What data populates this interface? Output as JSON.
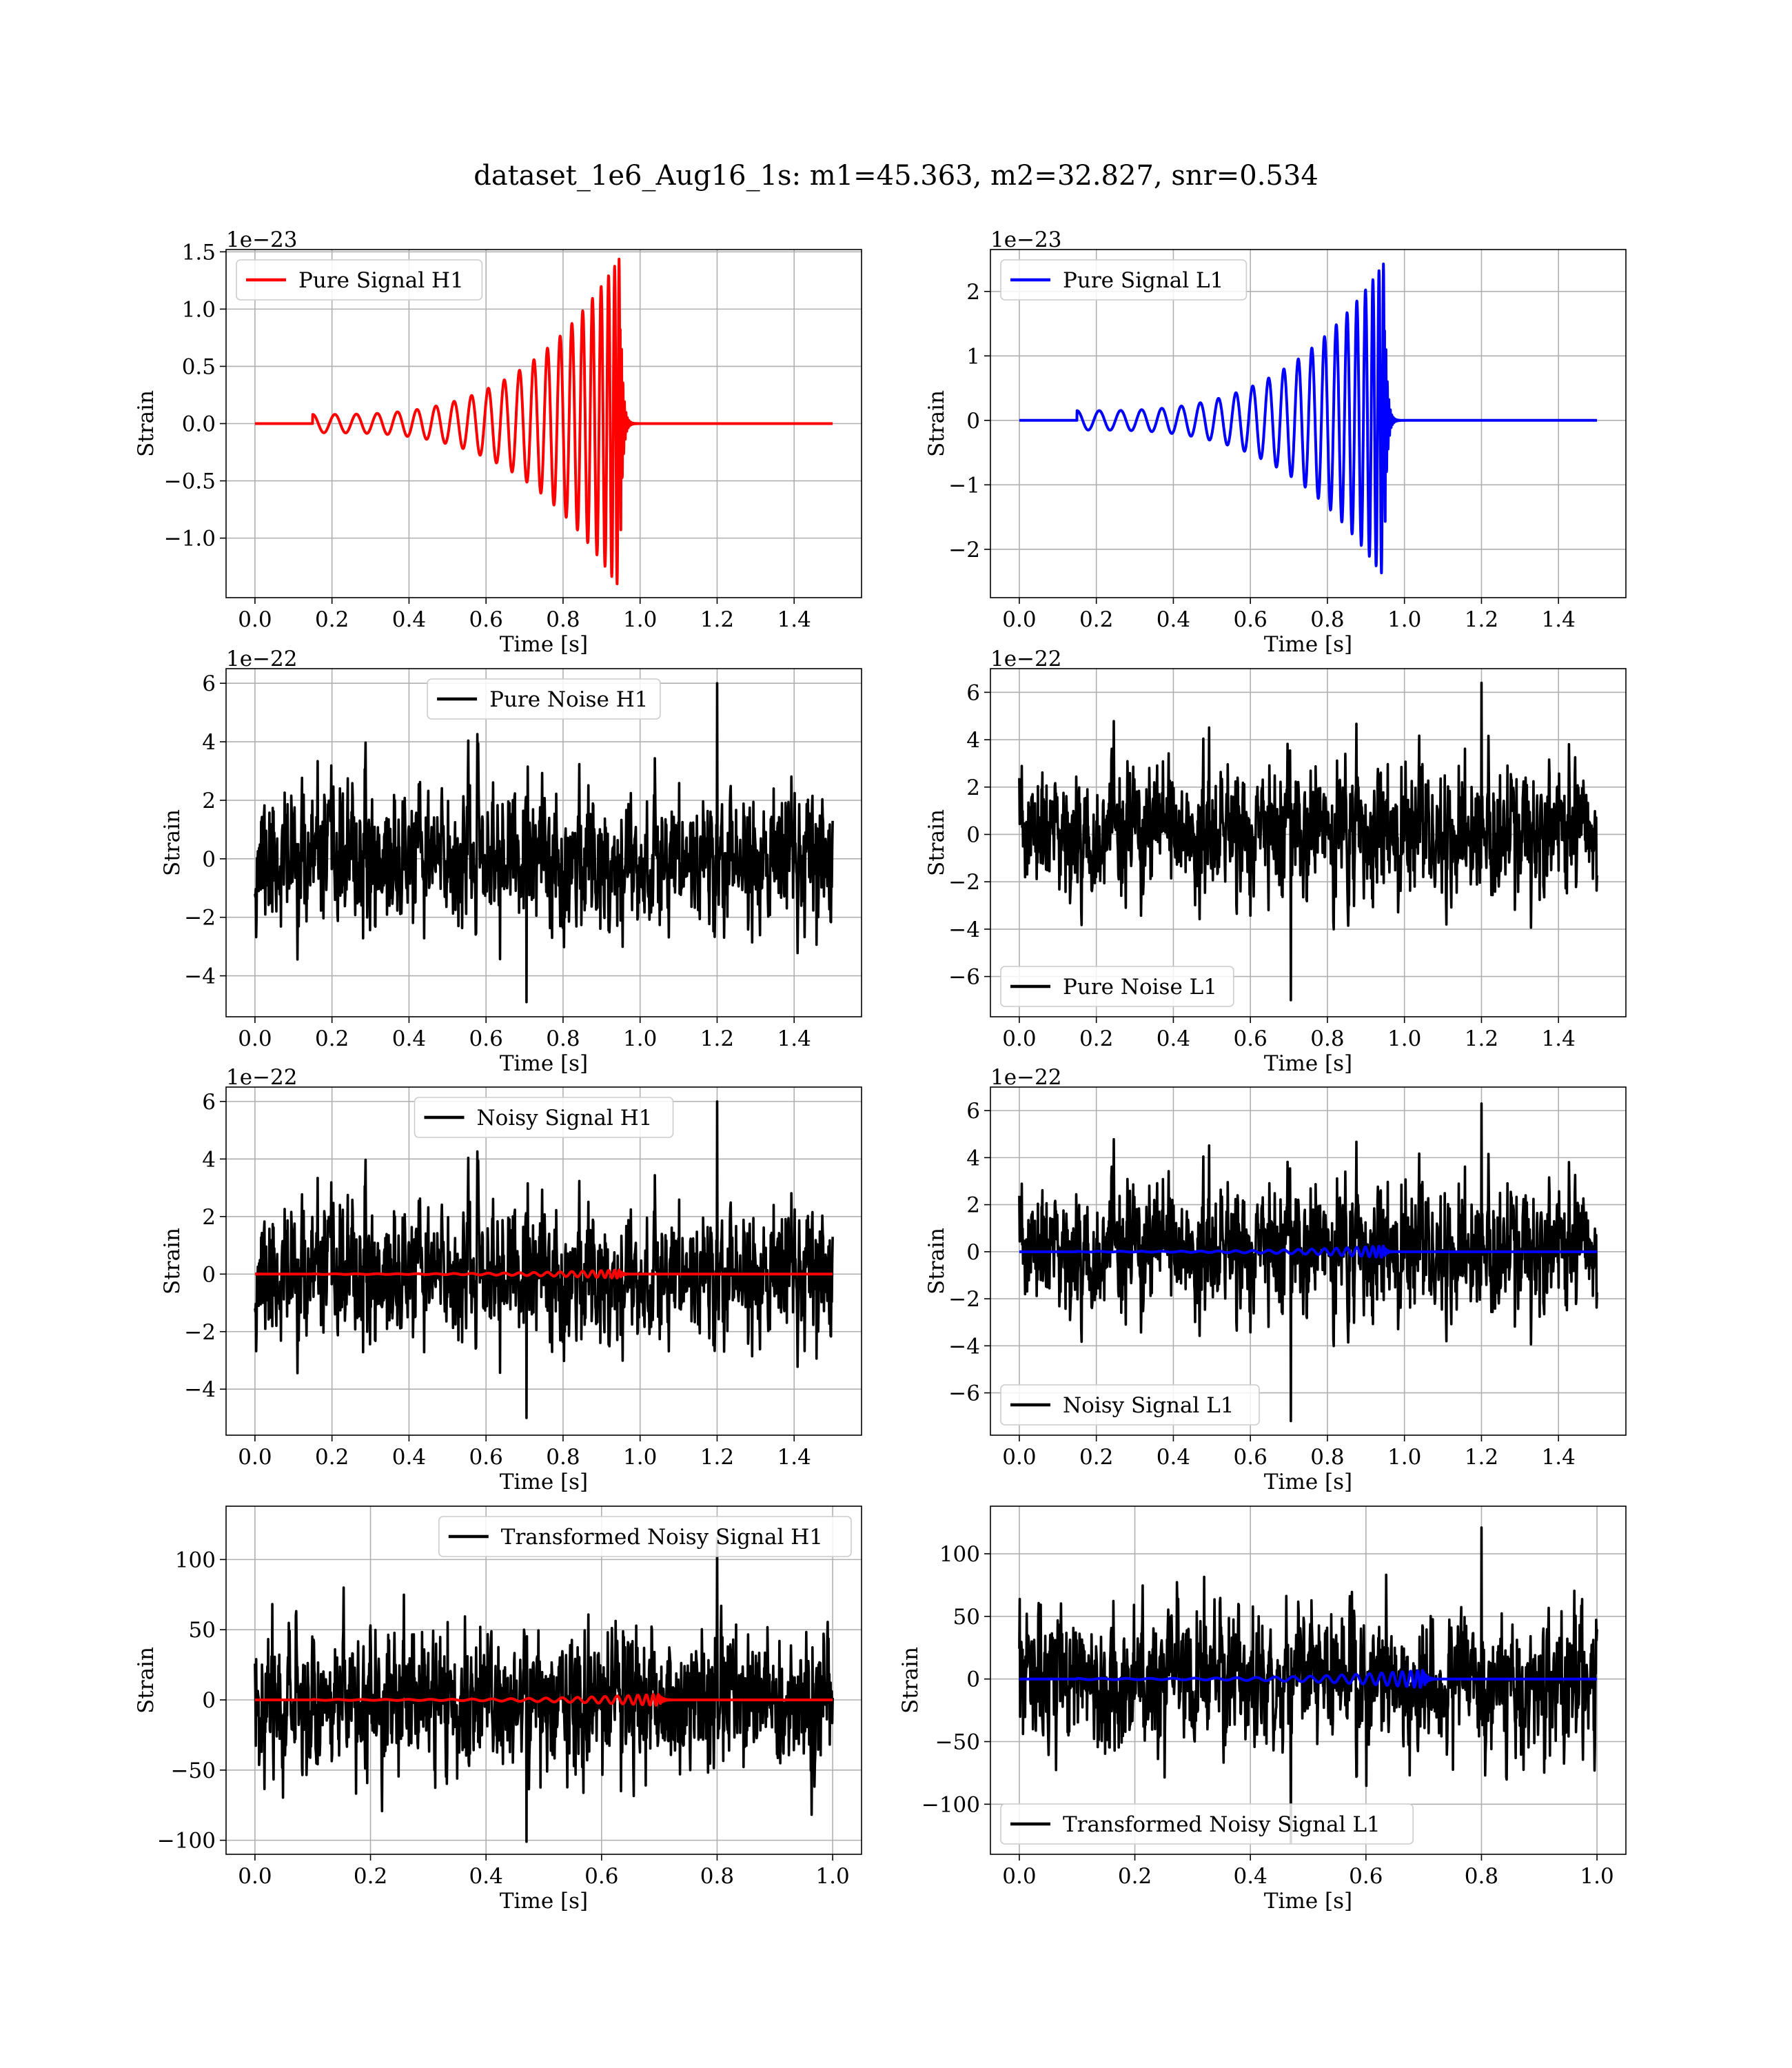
{
  "figure": {
    "title": "dataset_1e6_Aug16_1s: m1=45.363, m2=32.827, snr=0.534"
  },
  "chart_data": [
    {
      "id": "pure-signal-h1",
      "type": "line",
      "xlabel": "Time [s]",
      "ylabel": "Strain",
      "offset_label": "1e−23",
      "xlim": [
        -0.075,
        1.575
      ],
      "ylim": [
        -1.52,
        1.52
      ],
      "xticks": [
        0.0,
        0.2,
        0.4,
        0.6,
        0.8,
        1.0,
        1.2,
        1.4
      ],
      "xtick_labels": [
        "0.0",
        "0.2",
        "0.4",
        "0.6",
        "0.8",
        "1.0",
        "1.2",
        "1.4"
      ],
      "yticks": [
        -1.0,
        -0.5,
        0.0,
        0.5,
        1.0,
        1.5
      ],
      "ytick_labels": [
        "−1.0",
        "−0.5",
        "0.0",
        "0.5",
        "1.0",
        "1.5"
      ],
      "grid": true,
      "legend_position": "top-left",
      "series": [
        {
          "name": "Pure Signal H1",
          "color": "#ff0000",
          "kind": "chirp",
          "t_start": 0.15,
          "t_merge": 0.948,
          "t_end": 1.5,
          "amp_start": 0.08,
          "amp_peak": 1.45
        }
      ]
    },
    {
      "id": "pure-signal-l1",
      "type": "line",
      "xlabel": "Time [s]",
      "ylabel": "Strain",
      "offset_label": "1e−23",
      "xlim": [
        -0.075,
        1.575
      ],
      "ylim": [
        -2.75,
        2.65
      ],
      "xticks": [
        0.0,
        0.2,
        0.4,
        0.6,
        0.8,
        1.0,
        1.2,
        1.4
      ],
      "xtick_labels": [
        "0.0",
        "0.2",
        "0.4",
        "0.6",
        "0.8",
        "1.0",
        "1.2",
        "1.4"
      ],
      "yticks": [
        -2,
        -1,
        0,
        1,
        2
      ],
      "ytick_labels": [
        "−2",
        "−1",
        "0",
        "1",
        "2"
      ],
      "grid": true,
      "legend_position": "top-left",
      "series": [
        {
          "name": "Pure Signal L1",
          "color": "#0000ff",
          "kind": "chirp",
          "t_start": 0.15,
          "t_merge": 0.948,
          "t_end": 1.5,
          "amp_start": 0.15,
          "amp_peak": 2.45
        }
      ]
    },
    {
      "id": "pure-noise-h1",
      "type": "line",
      "xlabel": "Time [s]",
      "ylabel": "Strain",
      "offset_label": "1e−22",
      "xlim": [
        -0.075,
        1.575
      ],
      "ylim": [
        -5.4,
        6.5
      ],
      "xticks": [
        0.0,
        0.2,
        0.4,
        0.6,
        0.8,
        1.0,
        1.2,
        1.4
      ],
      "xtick_labels": [
        "0.0",
        "0.2",
        "0.4",
        "0.6",
        "0.8",
        "1.0",
        "1.2",
        "1.4"
      ],
      "yticks": [
        -4,
        -2,
        0,
        2,
        4,
        6
      ],
      "ytick_labels": [
        "−4",
        "−2",
        "0",
        "2",
        "4",
        "6"
      ],
      "grid": true,
      "legend_position": "top-center",
      "series": [
        {
          "name": "Pure Noise H1",
          "color": "#000000",
          "kind": "noise",
          "t_start": 0.0,
          "t_end": 1.5,
          "sigma": 1.4,
          "max": 6.0,
          "min": -4.9,
          "seed": 11
        }
      ]
    },
    {
      "id": "pure-noise-l1",
      "type": "line",
      "xlabel": "Time [s]",
      "ylabel": "Strain",
      "offset_label": "1e−22",
      "xlim": [
        -0.075,
        1.575
      ],
      "ylim": [
        -7.7,
        7.0
      ],
      "xticks": [
        0.0,
        0.2,
        0.4,
        0.6,
        0.8,
        1.0,
        1.2,
        1.4
      ],
      "xtick_labels": [
        "0.0",
        "0.2",
        "0.4",
        "0.6",
        "0.8",
        "1.0",
        "1.2",
        "1.4"
      ],
      "yticks": [
        -6,
        -4,
        -2,
        0,
        2,
        4,
        6
      ],
      "ytick_labels": [
        "−6",
        "−4",
        "−2",
        "0",
        "2",
        "4",
        "6"
      ],
      "grid": true,
      "legend_position": "bottom-left",
      "series": [
        {
          "name": "Pure Noise L1",
          "color": "#000000",
          "kind": "noise",
          "t_start": 0.0,
          "t_end": 1.5,
          "sigma": 1.6,
          "max": 6.4,
          "min": -7.0,
          "seed": 23
        }
      ]
    },
    {
      "id": "noisy-signal-h1",
      "type": "line",
      "xlabel": "Time [s]",
      "ylabel": "Strain",
      "offset_label": "1e−22",
      "xlim": [
        -0.075,
        1.575
      ],
      "ylim": [
        -5.6,
        6.5
      ],
      "xticks": [
        0.0,
        0.2,
        0.4,
        0.6,
        0.8,
        1.0,
        1.2,
        1.4
      ],
      "xtick_labels": [
        "0.0",
        "0.2",
        "0.4",
        "0.6",
        "0.8",
        "1.0",
        "1.2",
        "1.4"
      ],
      "yticks": [
        -4,
        -2,
        0,
        2,
        4,
        6
      ],
      "ytick_labels": [
        "−4",
        "−2",
        "0",
        "2",
        "4",
        "6"
      ],
      "grid": true,
      "legend_position": "top-center",
      "series": [
        {
          "name": "Noisy Signal H1",
          "color": "#000000",
          "kind": "noise",
          "t_start": 0.0,
          "t_end": 1.5,
          "sigma": 1.4,
          "max": 6.0,
          "min": -5.0,
          "seed": 11
        },
        {
          "color": "#ff0000",
          "kind": "chirp",
          "t_start": 0.15,
          "t_merge": 0.948,
          "t_end": 1.5,
          "amp_start": 0.01,
          "amp_peak": 0.145
        }
      ]
    },
    {
      "id": "noisy-signal-l1",
      "type": "line",
      "xlabel": "Time [s]",
      "ylabel": "Strain",
      "offset_label": "1e−22",
      "xlim": [
        -0.075,
        1.575
      ],
      "ylim": [
        -7.8,
        7.0
      ],
      "xticks": [
        0.0,
        0.2,
        0.4,
        0.6,
        0.8,
        1.0,
        1.2,
        1.4
      ],
      "xtick_labels": [
        "0.0",
        "0.2",
        "0.4",
        "0.6",
        "0.8",
        "1.0",
        "1.2",
        "1.4"
      ],
      "yticks": [
        -6,
        -4,
        -2,
        0,
        2,
        4,
        6
      ],
      "ytick_labels": [
        "−6",
        "−4",
        "−2",
        "0",
        "2",
        "4",
        "6"
      ],
      "grid": true,
      "legend_position": "bottom-left",
      "series": [
        {
          "name": "Noisy Signal L1",
          "color": "#000000",
          "kind": "noise",
          "t_start": 0.0,
          "t_end": 1.5,
          "sigma": 1.6,
          "max": 6.3,
          "min": -7.2,
          "seed": 23
        },
        {
          "color": "#0000ff",
          "kind": "chirp",
          "t_start": 0.15,
          "t_merge": 0.948,
          "t_end": 1.5,
          "amp_start": 0.015,
          "amp_peak": 0.245
        }
      ]
    },
    {
      "id": "transformed-noisy-signal-h1",
      "type": "line",
      "xlabel": "Time [s]",
      "ylabel": "Strain",
      "offset_label": "",
      "xlim": [
        -0.05,
        1.05
      ],
      "ylim": [
        -110,
        138
      ],
      "xticks": [
        0.0,
        0.2,
        0.4,
        0.6,
        0.8,
        1.0
      ],
      "xtick_labels": [
        "0.0",
        "0.2",
        "0.4",
        "0.6",
        "0.8",
        "1.0"
      ],
      "yticks": [
        -100,
        -50,
        0,
        50,
        100
      ],
      "ytick_labels": [
        "−100",
        "−50",
        "0",
        "50",
        "100"
      ],
      "grid": true,
      "legend_position": "top-right",
      "series": [
        {
          "name": "Transformed Noisy Signal H1",
          "color": "#000000",
          "kind": "noise",
          "t_start": 0.0,
          "t_end": 1.0,
          "sigma": 30,
          "max": 115,
          "min": -101,
          "seed": 37
        },
        {
          "color": "#ff0000",
          "kind": "chirp",
          "t_start": 0.1,
          "t_merge": 0.7,
          "t_end": 1.0,
          "amp_start": 0.3,
          "amp_peak": 4
        }
      ]
    },
    {
      "id": "transformed-noisy-signal-l1",
      "type": "line",
      "xlabel": "Time [s]",
      "ylabel": "Strain",
      "offset_label": "",
      "xlim": [
        -0.05,
        1.05
      ],
      "ylim": [
        -140,
        138
      ],
      "xticks": [
        0.0,
        0.2,
        0.4,
        0.6,
        0.8,
        1.0
      ],
      "xtick_labels": [
        "0.0",
        "0.2",
        "0.4",
        "0.6",
        "0.8",
        "1.0"
      ],
      "yticks": [
        -100,
        -50,
        0,
        50,
        100
      ],
      "ytick_labels": [
        "−100",
        "−50",
        "0",
        "50",
        "100"
      ],
      "grid": true,
      "legend_position": "bottom-left",
      "series": [
        {
          "name": "Transformed Noisy Signal L1",
          "color": "#000000",
          "kind": "noise",
          "t_start": 0.0,
          "t_end": 1.0,
          "sigma": 32,
          "max": 121,
          "min": -131,
          "seed": 53
        },
        {
          "color": "#0000ff",
          "kind": "chirp",
          "t_start": 0.1,
          "t_merge": 0.7,
          "t_end": 1.0,
          "amp_start": 0.5,
          "amp_peak": 7
        }
      ]
    }
  ]
}
